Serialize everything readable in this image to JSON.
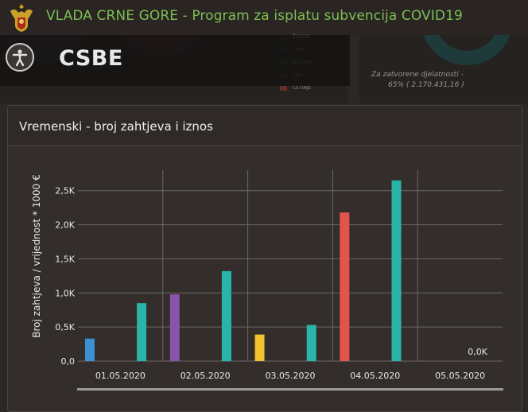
{
  "header": {
    "app_title": "VLADA CRNE GORE - Program za isplatu subvencija COVID19",
    "crest_icon": "montenegro-coat-of-arms-icon"
  },
  "page": {
    "code": "CSBE",
    "accessibility_icon": "accessibility-icon"
  },
  "background_panel": {
    "legend_items": [
      {
        "label": "ŠAVNIK",
        "color": "#3a2a3a"
      },
      {
        "label": "TIVAT",
        "color": "#1f3345"
      },
      {
        "label": "GUSINJE",
        "color": "#233a2c"
      },
      {
        "label": "ŠAE",
        "color": "#3a3520"
      },
      {
        "label": "CETINJE",
        "color": "#6b2b2b"
      }
    ],
    "note": "Za zatvorene djelatnosti -",
    "note_value": "65% ( 2.170.431,16 )"
  },
  "card": {
    "title": "Vremenski - broj zahtjeva i iznos"
  },
  "chart_data": {
    "type": "bar",
    "title": "",
    "xlabel": "",
    "ylabel": "Broj zahtjeva / vrijednost * 1000 €",
    "ylim": [
      0,
      2800
    ],
    "yticks": [
      "0,0",
      "0,5K",
      "1,0K",
      "1,5K",
      "2,0K",
      "2,5K"
    ],
    "grid": true,
    "categories": [
      "01.05.2020",
      "02.05.2020",
      "03.05.2020",
      "04.05.2020",
      "05.05.2020"
    ],
    "groups": [
      {
        "category": "01.05.2020",
        "bars": [
          {
            "value": 330,
            "color": "#3d8fd4"
          },
          {
            "value": 850,
            "color": "#2ab5aa"
          }
        ]
      },
      {
        "category": "02.05.2020",
        "bars": [
          {
            "value": 980,
            "color": "#8a55a8"
          },
          {
            "value": 1320,
            "color": "#2ab5aa"
          }
        ]
      },
      {
        "category": "03.05.2020",
        "bars": [
          {
            "value": 390,
            "color": "#f2c12e"
          },
          {
            "value": 530,
            "color": "#2ab5aa"
          }
        ]
      },
      {
        "category": "04.05.2020",
        "bars": [
          {
            "value": 2180,
            "color": "#e3544d"
          },
          {
            "value": 2650,
            "color": "#2ab5aa"
          }
        ]
      },
      {
        "category": "05.05.2020",
        "bars": [
          {
            "value": 0,
            "color": "#2ab5aa"
          }
        ]
      }
    ],
    "annotations": [
      {
        "category": "05.05.2020",
        "text": "0,0K"
      }
    ]
  }
}
